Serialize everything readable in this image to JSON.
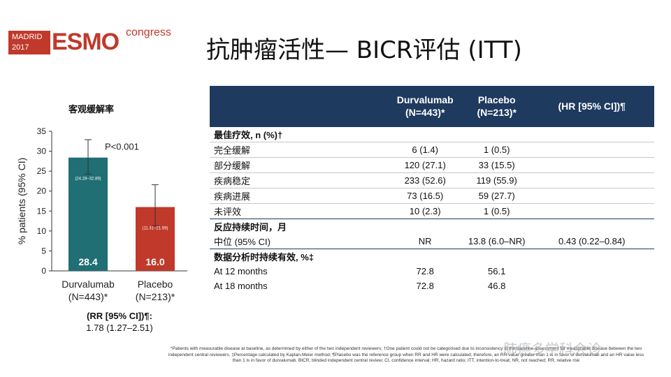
{
  "logo": {
    "city": "MADRID",
    "year": "2017",
    "brand": "ESMO",
    "suffix": "congress"
  },
  "title": "抗肿瘤活性— BICR评估 (ITT)",
  "chart": {
    "title": "客观缓解率",
    "pvalue": "P<0.001",
    "rr_label": "(RR [95% CI])¶:",
    "rr_value": "1.78 (1.27–2.51)"
  },
  "chart_data": {
    "type": "bar",
    "title": "客观缓解率",
    "ylabel": "% patients (95% CI)",
    "ylim": [
      0,
      35
    ],
    "yticks": [
      "0",
      "5",
      "10",
      "15",
      "20",
      "25",
      "30",
      "35"
    ],
    "categories": [
      {
        "line1": "Durvalumab",
        "line2": "(N=443)*"
      },
      {
        "line1": "Placebo",
        "line2": "(N=213)*"
      }
    ],
    "values": [
      28.4,
      16.0
    ],
    "value_labels": [
      "28.4",
      "16.0"
    ],
    "ci_low": [
      24.28,
      11.31
    ],
    "ci_high": [
      32.89,
      21.59
    ],
    "ci_labels": [
      "(24.28–32.89)",
      "(11.31–21.59)"
    ],
    "colors": [
      "#1f6f74",
      "#c0392b"
    ],
    "grid": false
  },
  "table": {
    "headers": [
      "",
      "Durvalumab\n(N=443)*",
      "Placebo\n(N=213)*",
      "(HR [95% CI])¶"
    ],
    "sections": [
      {
        "title": "最佳疗效, n (%)†",
        "rows": [
          {
            "label": "完全缓解",
            "d": "6 (1.4)",
            "p": "1 (0.5)",
            "hr": ""
          },
          {
            "label": "部分缓解",
            "d": "120 (27.1)",
            "p": "33 (15.5)",
            "hr": ""
          },
          {
            "label": "疾病稳定",
            "d": "233 (52.6)",
            "p": "119 (55.9)",
            "hr": ""
          },
          {
            "label": "疾病进展",
            "d": "73 (16.5)",
            "p": "59 (27.7)",
            "hr": ""
          },
          {
            "label": "未评效",
            "d": "10 (2.3)",
            "p": "1 (0.5)",
            "hr": ""
          }
        ]
      },
      {
        "title": "反应持续时间，月",
        "rows": [
          {
            "label": "中位 (95% CI)",
            "d": "NR",
            "p": "13.8 (6.0–NR)",
            "hr": "0.43 (0.22–0.84)"
          }
        ]
      },
      {
        "title": "数据分析时持续有效, %‡",
        "rows": [
          {
            "label": "At 12 months",
            "d": "72.8",
            "p": "56.1",
            "hr": ""
          },
          {
            "label": "At 18 months",
            "d": "72.8",
            "p": "46.8",
            "hr": ""
          }
        ]
      }
    ]
  },
  "footnote": "*Patients with measurable disease at baseline, as determined by either of the two independent reviewers; †One patient could not be categorised due to inconsistency in the baseline assessment for measurable disease between the two independent central reviewers. ‡Percentage calculated by Kaplan-Meier method; ¶Placebo was the reference group when RR and HR were calculated; therefore, an RR value greater than 1 is in favor of durvalumab and an HR value less than 1 is in favor of durvalumab. BICR, blinded independent central review; CI, confidence interval; HR, hazard ratio; ITT, intention-to-treat; NR, not reached; RR, relative risk",
  "watermark": "肺癌多学科会诊"
}
